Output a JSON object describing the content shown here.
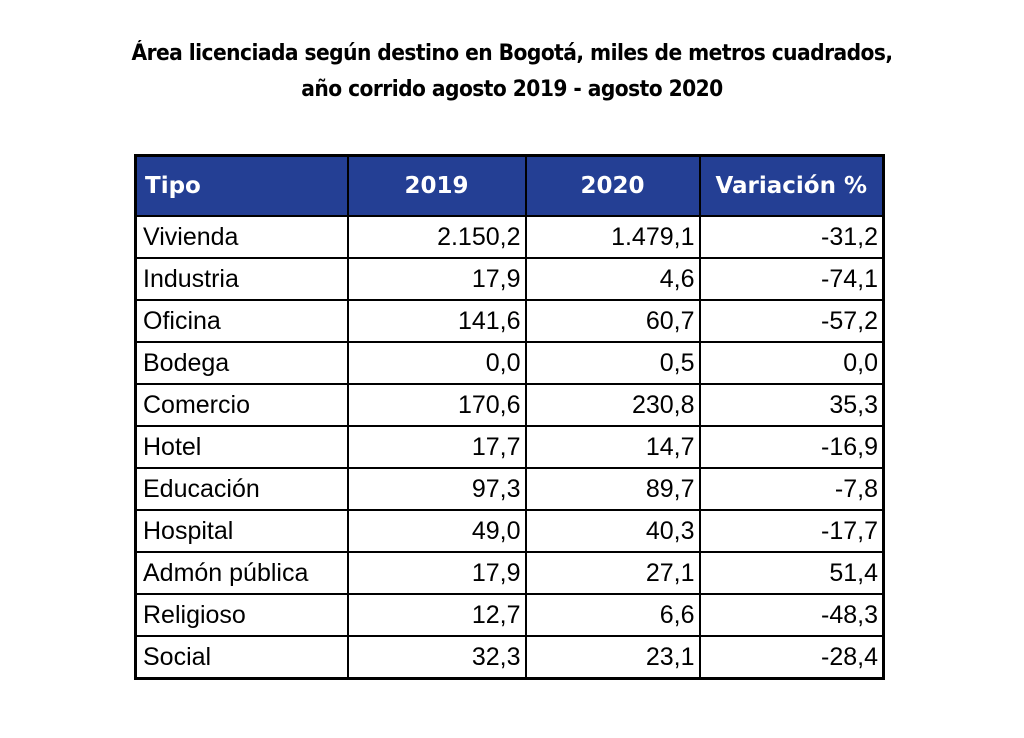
{
  "chart_data": {
    "type": "table",
    "title": "Área licenciada según destino en Bogotá, miles de metros cuadrados, año corrido agosto 2019 - agosto 2020",
    "title_lines": [
      "Área licenciada según destino en Bogotá, miles de metros cuadrados,",
      "año corrido agosto 2019 - agosto 2020"
    ],
    "columns": [
      "Tipo",
      "2019",
      "2020",
      "Variación %"
    ],
    "rows": [
      [
        "Vivienda",
        "2.150,2",
        "1.479,1",
        "-31,2"
      ],
      [
        "Industria",
        "17,9",
        "4,6",
        "-74,1"
      ],
      [
        "Oficina",
        "141,6",
        "60,7",
        "-57,2"
      ],
      [
        "Bodega",
        "0,0",
        "0,5",
        "0,0"
      ],
      [
        "Comercio",
        "170,6",
        "230,8",
        "35,3"
      ],
      [
        "Hotel",
        "17,7",
        "14,7",
        "-16,9"
      ],
      [
        "Educación",
        "97,3",
        "89,7",
        "-7,8"
      ],
      [
        "Hospital",
        "49,0",
        "40,3",
        "-17,7"
      ],
      [
        "Admón pública",
        "17,9",
        "27,1",
        "51,4"
      ],
      [
        "Religioso",
        "12,7",
        "6,6",
        "-48,3"
      ],
      [
        "Social",
        "32,3",
        "23,1",
        "-28,4"
      ]
    ],
    "header_color": "#243f94"
  }
}
